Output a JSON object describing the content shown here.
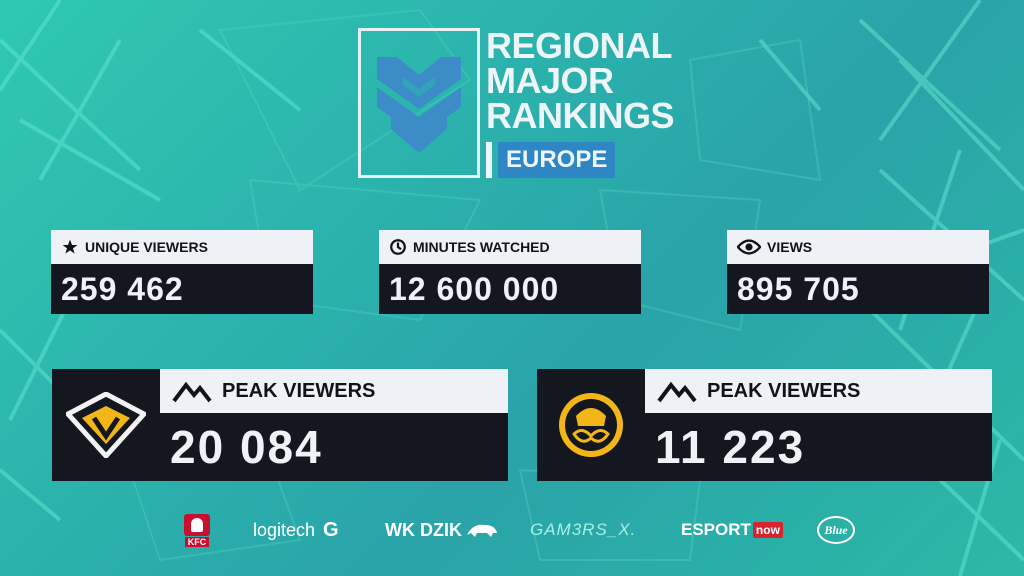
{
  "header": {
    "title_lines": [
      "REGIONAL",
      "MAJOR",
      "RANKINGS"
    ],
    "region": "EUROPE"
  },
  "stats": [
    {
      "label": "UNIQUE VIEWERS",
      "value": "259 462",
      "icon": "star-icon"
    },
    {
      "label": "MINUTES WATCHED",
      "value": "12 600 000",
      "icon": "clock-icon"
    },
    {
      "label": "VIEWS",
      "value": "895 705",
      "icon": "eye-icon"
    }
  ],
  "peaks": [
    {
      "label": "PEAK VIEWERS",
      "value": "20 084",
      "team_logo": "anonymo-team-logo"
    },
    {
      "label": "PEAK VIEWERS",
      "value": "11 223",
      "team_logo": "ence-team-logo"
    }
  ],
  "sponsors": {
    "kfc": "KFC",
    "logitech": "logitech",
    "wkdzik": "WK DZIK",
    "gamers": "GAM3RS_X.",
    "esport": "ESPORT",
    "esport_badge": "now",
    "blue": "Blue"
  },
  "colors": {
    "background": "#2bb3ad",
    "card_light": "#eef2f7",
    "card_dark": "#141620",
    "region_blue": "#2f86c4",
    "accent_yellow": "#f2b619"
  }
}
